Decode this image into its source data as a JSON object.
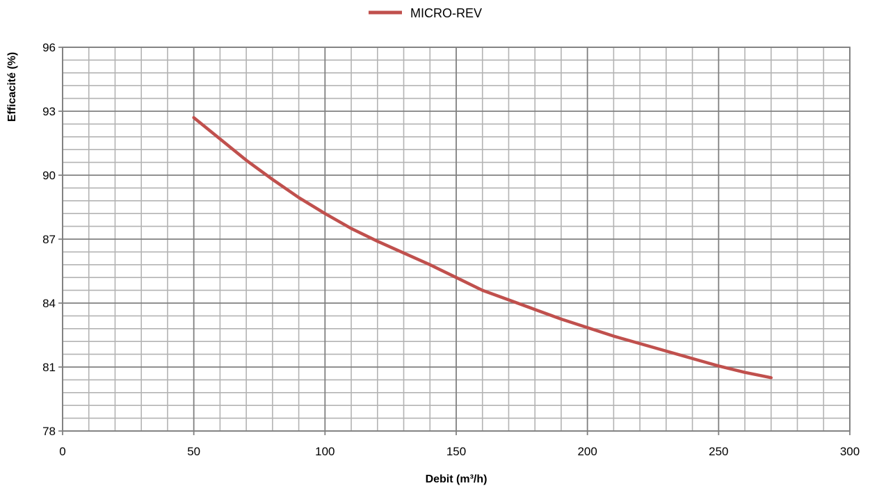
{
  "chart_data": {
    "type": "line",
    "title": "",
    "xlabel": "Debit (m³/h)",
    "ylabel": "Efficacité (%)",
    "xlim": [
      0,
      300
    ],
    "ylim": [
      78,
      96
    ],
    "x_ticks": [
      0,
      50,
      100,
      150,
      200,
      250,
      300
    ],
    "y_ticks": [
      78,
      81,
      84,
      87,
      90,
      93,
      96
    ],
    "x_minor_step": 10,
    "y_minor_step": 0.6,
    "grid": true,
    "legend_position": "top-center",
    "series": [
      {
        "name": "MICRO-REV",
        "color": "#c0504d",
        "x": [
          50,
          60,
          70,
          80,
          90,
          100,
          110,
          120,
          130,
          140,
          150,
          160,
          170,
          180,
          190,
          200,
          210,
          220,
          230,
          240,
          250,
          260,
          270
        ],
        "y": [
          92.7,
          91.7,
          90.7,
          89.8,
          88.95,
          88.2,
          87.5,
          86.9,
          86.35,
          85.8,
          85.2,
          84.6,
          84.15,
          83.7,
          83.25,
          82.85,
          82.45,
          82.1,
          81.75,
          81.4,
          81.05,
          80.75,
          80.5
        ]
      }
    ]
  }
}
